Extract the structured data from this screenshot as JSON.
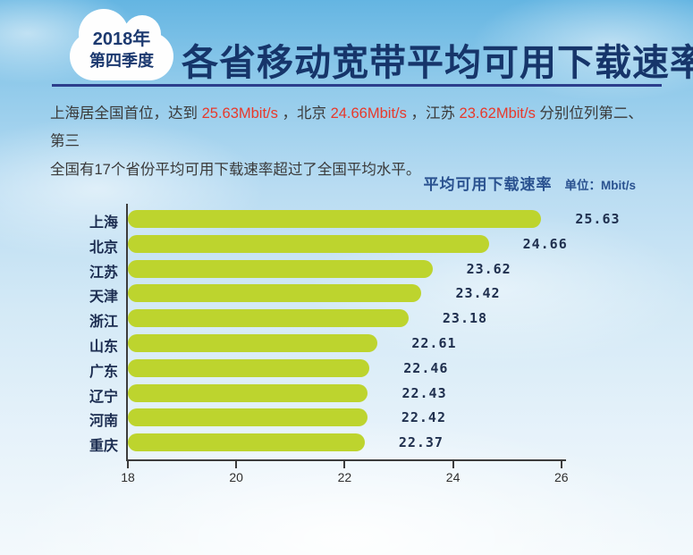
{
  "badge": {
    "line1": "2018年",
    "line2": "第四季度"
  },
  "header": {
    "title": "各省移动宽带平均可用下载速率"
  },
  "intro": {
    "line1_segments": [
      {
        "text": "上海居全国首位，达到 ",
        "red": false
      },
      {
        "text": "25.63Mbit/s",
        "red": true
      },
      {
        "text": " ，北京 ",
        "red": false
      },
      {
        "text": "24.66Mbit/s",
        "red": true
      },
      {
        "text": " ，江苏 ",
        "red": false
      },
      {
        "text": "23.62Mbit/s",
        "red": true
      },
      {
        "text": " 分别位列第二、第三",
        "red": false
      }
    ],
    "line2": "全国有17个省份平均可用下载速率超过了全国平均水平。"
  },
  "chart_header": {
    "title": "平均可用下载速率",
    "unit_label": "单位：Mbit/s"
  },
  "chart_data": {
    "type": "bar",
    "orientation": "horizontal",
    "title": "平均可用下载速率",
    "unit": "Mbit/s",
    "categories": [
      "上海",
      "北京",
      "江苏",
      "天津",
      "浙江",
      "山东",
      "广东",
      "辽宁",
      "河南",
      "重庆"
    ],
    "values": [
      25.63,
      24.66,
      23.62,
      23.42,
      23.18,
      22.61,
      22.46,
      22.43,
      22.42,
      22.37
    ],
    "xlim": [
      18,
      26
    ],
    "xticks": [
      "18",
      "20",
      "22",
      "24",
      "26"
    ],
    "grid": false,
    "legend": "none",
    "bar_color": "#bdd42e"
  },
  "colors": {
    "title_navy": "#16356a",
    "highlight_red": "#e8392b",
    "divider_blue": "#2c3e8c",
    "chart_title_blue": "#2a5290",
    "bar_green": "#bdd42e",
    "axis_dark": "#3c3c3c"
  }
}
